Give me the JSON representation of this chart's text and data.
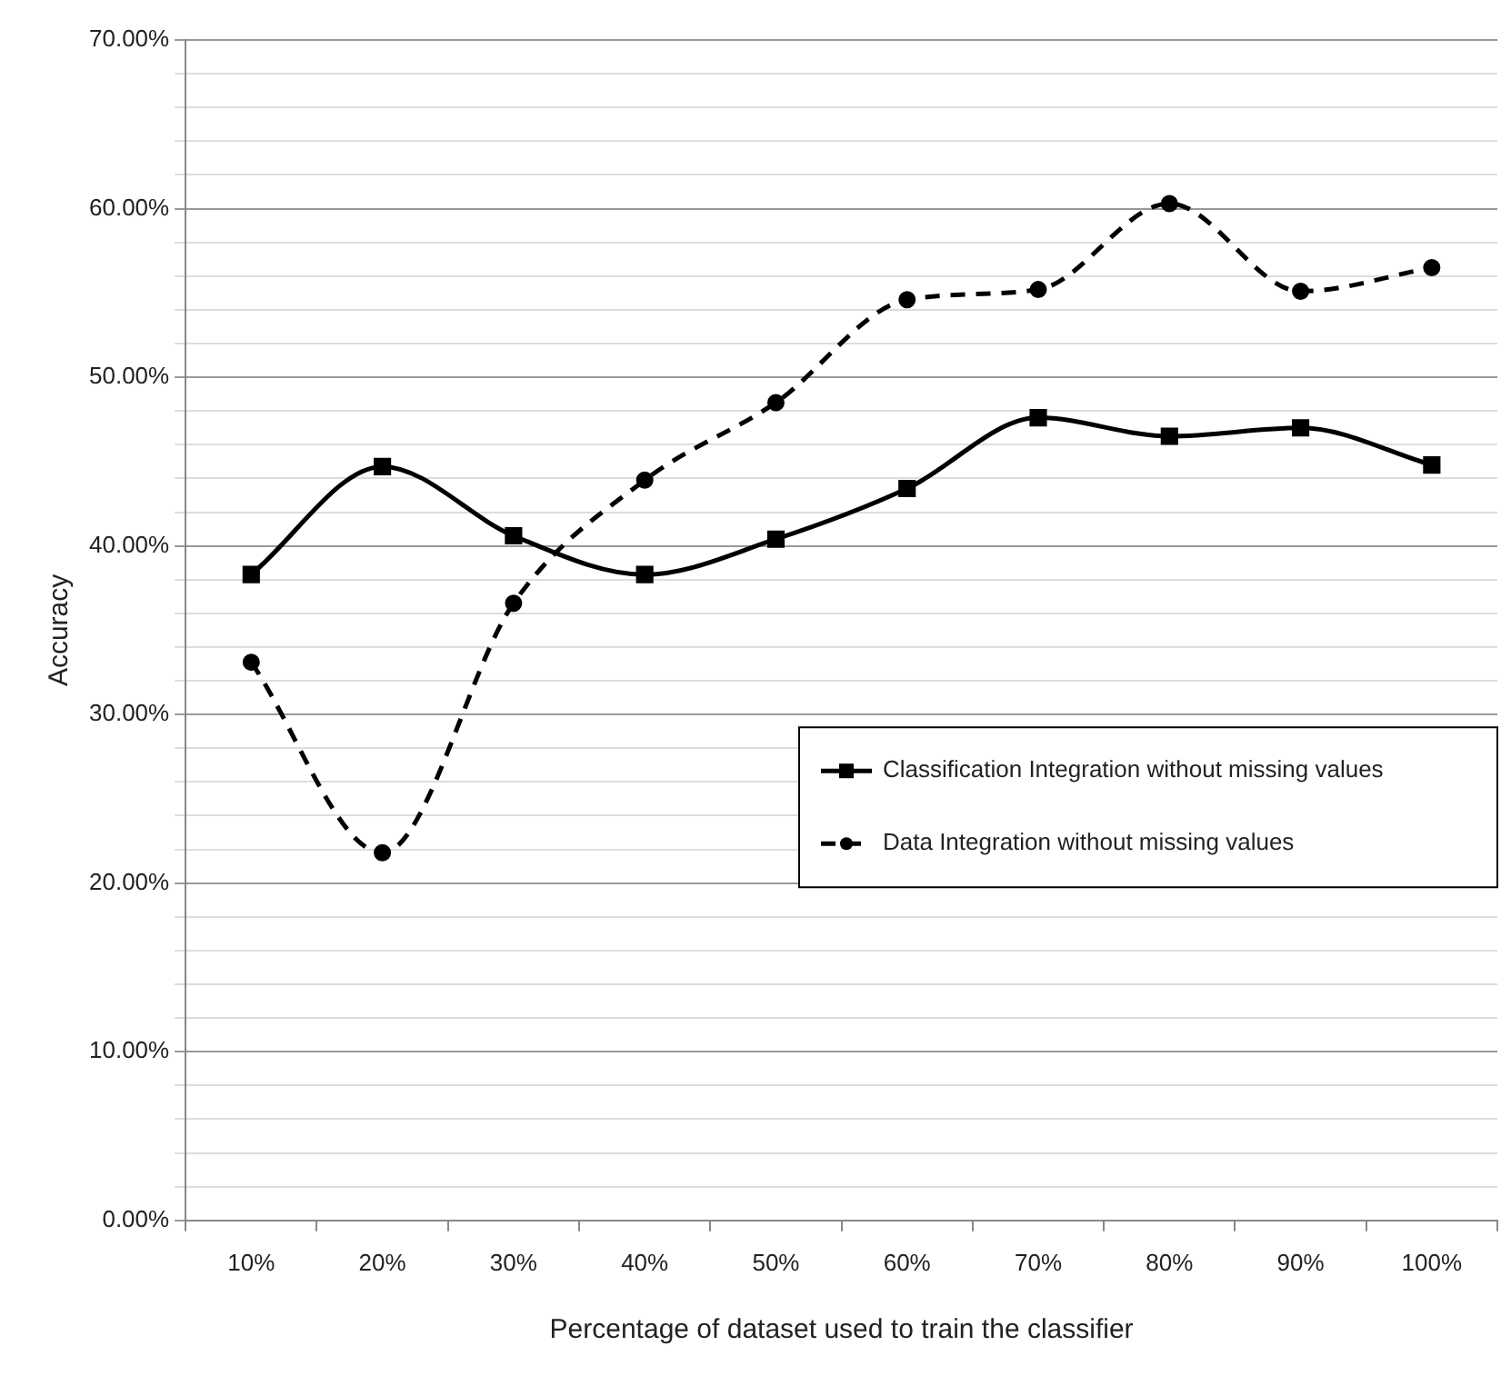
{
  "chart_data": {
    "type": "line",
    "xlabel": "Percentage of dataset used to train the classifier",
    "ylabel": "Accuracy",
    "categories": [
      "10%",
      "20%",
      "30%",
      "40%",
      "50%",
      "60%",
      "70%",
      "80%",
      "90%",
      "100%"
    ],
    "series": [
      {
        "name": "Classification Integration without missing values",
        "color": "#000000",
        "marker": "square",
        "line_style": "solid",
        "values": [
          38.3,
          44.7,
          40.6,
          38.3,
          40.4,
          43.4,
          47.6,
          46.5,
          47.0,
          44.8
        ]
      },
      {
        "name": "Data Integration without missing values",
        "color": "#000000",
        "marker": "circle",
        "line_style": "dashed",
        "values": [
          33.1,
          21.8,
          36.6,
          43.9,
          48.5,
          54.6,
          55.2,
          60.3,
          55.1,
          56.5
        ]
      }
    ],
    "ylim": [
      0,
      70
    ],
    "yticks": [
      {
        "value": 0,
        "label": "0.00%"
      },
      {
        "value": 2,
        "label": null
      },
      {
        "value": 4,
        "label": null
      },
      {
        "value": 6,
        "label": null
      },
      {
        "value": 8,
        "label": null
      },
      {
        "value": 10,
        "label": "10.00%"
      },
      {
        "value": 12,
        "label": null
      },
      {
        "value": 14,
        "label": null
      },
      {
        "value": 16,
        "label": null
      },
      {
        "value": 18,
        "label": null
      },
      {
        "value": 20,
        "label": "20.00%"
      },
      {
        "value": 22,
        "label": null
      },
      {
        "value": 24,
        "label": null
      },
      {
        "value": 26,
        "label": null
      },
      {
        "value": 28,
        "label": null
      },
      {
        "value": 30,
        "label": "30.00%"
      },
      {
        "value": 32,
        "label": null
      },
      {
        "value": 34,
        "label": null
      },
      {
        "value": 36,
        "label": null
      },
      {
        "value": 38,
        "label": null
      },
      {
        "value": 40,
        "label": "40.00%"
      },
      {
        "value": 42,
        "label": null
      },
      {
        "value": 44,
        "label": null
      },
      {
        "value": 46,
        "label": null
      },
      {
        "value": 48,
        "label": null
      },
      {
        "value": 50,
        "label": "50.00%"
      },
      {
        "value": 52,
        "label": null
      },
      {
        "value": 54,
        "label": null
      },
      {
        "value": 56,
        "label": null
      },
      {
        "value": 58,
        "label": null
      },
      {
        "value": 60,
        "label": "60.00%"
      },
      {
        "value": 62,
        "label": null
      },
      {
        "value": 64,
        "label": null
      },
      {
        "value": 66,
        "label": null
      },
      {
        "value": 68,
        "label": null
      },
      {
        "value": 70,
        "label": "70.00%"
      }
    ],
    "grid": "y",
    "legend": "right"
  }
}
